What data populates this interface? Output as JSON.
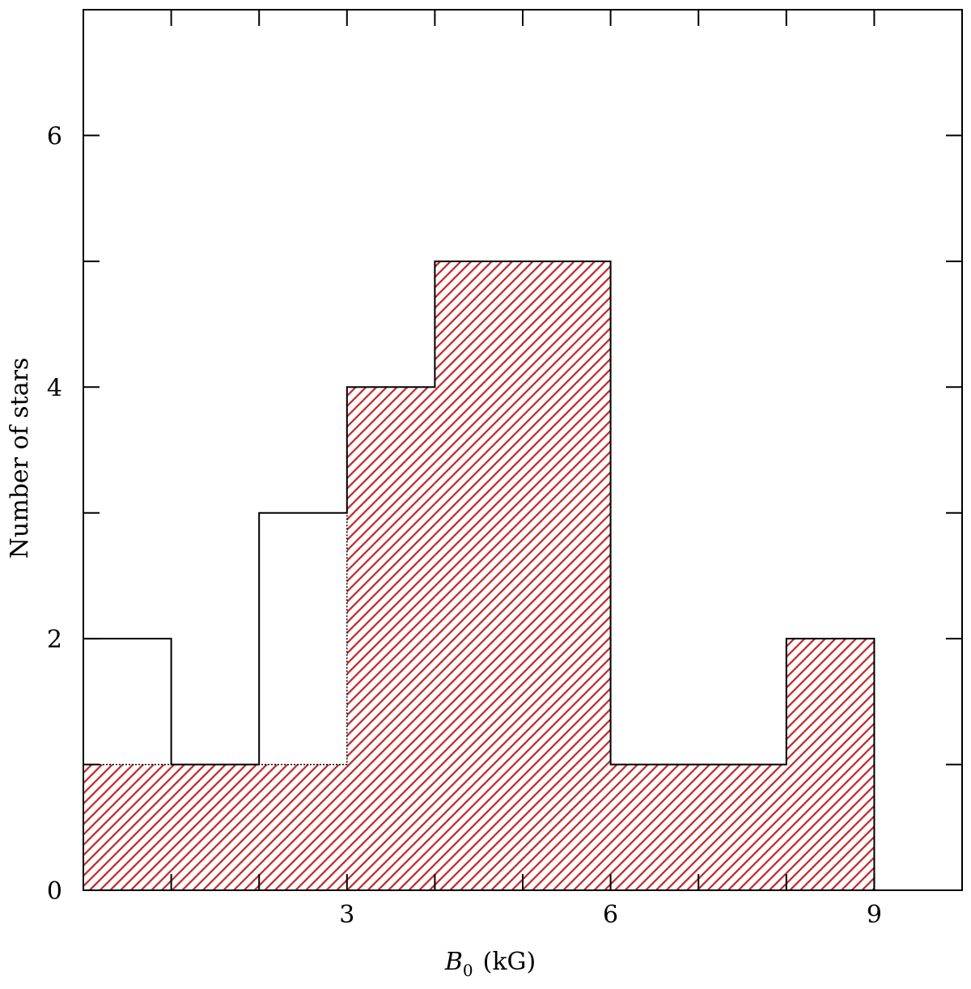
{
  "chart_data": {
    "type": "bar",
    "subtype": "histogram",
    "xlabel_symbol": "B",
    "xlabel_subscript": "0",
    "xlabel_unit": "(kG)",
    "ylabel": "Number of stars",
    "xlim": [
      0,
      10
    ],
    "ylim": [
      0,
      7
    ],
    "x_ticks_labeled": [
      3,
      6,
      9
    ],
    "y_ticks_labeled": [
      0,
      2,
      4,
      6
    ],
    "x_minor_ticks": [
      1,
      2,
      3,
      4,
      5,
      6,
      7,
      8,
      9
    ],
    "y_minor_ticks": [
      1,
      2,
      3,
      4,
      5,
      6
    ],
    "bin_edges": [
      0,
      1,
      2,
      3,
      4,
      6,
      8,
      9,
      10
    ],
    "series": [
      {
        "style": "outline",
        "color": "#000000",
        "values": [
          2,
          1,
          3,
          4,
          5,
          1,
          2,
          0
        ]
      },
      {
        "style": "hatched",
        "color": "#c0282a",
        "values": [
          1,
          1,
          1,
          4,
          5,
          1,
          2,
          0
        ]
      }
    ],
    "grid": false,
    "legend": false
  }
}
